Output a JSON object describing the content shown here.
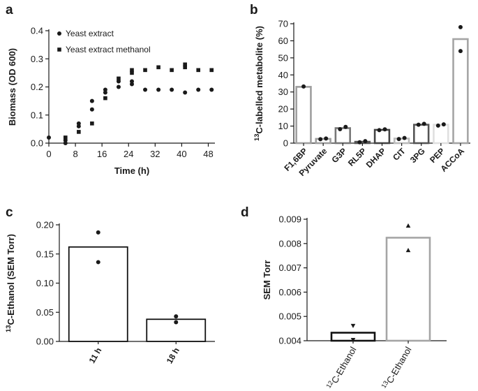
{
  "chart_data": [
    {
      "panel": "a",
      "type": "scatter",
      "xlabel": "Time (h)",
      "ylabel": "Biomass (OD 600)",
      "xlim": [
        0,
        50
      ],
      "ylim": [
        0,
        0.4
      ],
      "xticks": [
        "0",
        "8",
        "16",
        "24",
        "32",
        "40",
        "48"
      ],
      "yticks": [
        "0.0",
        "0.1",
        "0.2",
        "0.3",
        "0.4"
      ],
      "legend_position": "top-left",
      "series": [
        {
          "name": "Yeast extract",
          "marker": "circle",
          "points": [
            [
              0,
              0.02
            ],
            [
              5,
              0.01
            ],
            [
              5,
              0.0
            ],
            [
              9,
              0.06
            ],
            [
              9,
              0.07
            ],
            [
              13,
              0.12
            ],
            [
              13,
              0.15
            ],
            [
              17,
              0.18
            ],
            [
              17,
              0.19
            ],
            [
              21,
              0.2
            ],
            [
              21,
              0.22
            ],
            [
              25,
              0.21
            ],
            [
              25,
              0.22
            ],
            [
              29,
              0.19
            ],
            [
              33,
              0.19
            ],
            [
              37,
              0.19
            ],
            [
              41,
              0.18
            ],
            [
              45,
              0.19
            ],
            [
              49,
              0.19
            ]
          ]
        },
        {
          "name": "Yeast extract methanol",
          "marker": "square",
          "points": [
            [
              5,
              0.02
            ],
            [
              9,
              0.04
            ],
            [
              13,
              0.07
            ],
            [
              17,
              0.16
            ],
            [
              21,
              0.23
            ],
            [
              25,
              0.25
            ],
            [
              25,
              0.26
            ],
            [
              29,
              0.26
            ],
            [
              33,
              0.27
            ],
            [
              37,
              0.26
            ],
            [
              41,
              0.28
            ],
            [
              41,
              0.27
            ],
            [
              45,
              0.26
            ],
            [
              49,
              0.26
            ]
          ]
        }
      ]
    },
    {
      "panel": "b",
      "type": "bar",
      "ylabel_prefix": "13",
      "ylabel": "C-labelled metabolite (%)",
      "ylim": [
        0,
        70
      ],
      "yticks": [
        "0",
        "10",
        "20",
        "30",
        "40",
        "50",
        "60",
        "70"
      ],
      "categories": [
        "F1,6BP",
        "Pyruvate",
        "G3P",
        "RL5P",
        "DHAP",
        "CIT",
        "3PG",
        "PEP",
        "ACCoA"
      ],
      "values": [
        33,
        2.5,
        8.8,
        0.8,
        7.8,
        2.7,
        10.8,
        10.8,
        61
      ],
      "bar_edge_colors": [
        "#9e9e9e",
        "#9e9e9e",
        "#777777",
        "#555555",
        "#444444",
        "#bbbbbb",
        "#555555",
        "#e0e0e0",
        "#a5a5a5"
      ],
      "replicates": [
        [
          33.2
        ],
        [
          2.3,
          2.7
        ],
        [
          8.2,
          9.5
        ],
        [
          0.5,
          1.2
        ],
        [
          7.6,
          8.1
        ],
        [
          2.4,
          3.0
        ],
        [
          10.8,
          11.3
        ],
        [
          10.3,
          11.0
        ],
        [
          54,
          68
        ]
      ]
    },
    {
      "panel": "c",
      "type": "bar",
      "ylabel_prefix": "13",
      "ylabel": "C-Ethanol (SEM Torr)",
      "ylim": [
        0,
        0.2
      ],
      "yticks": [
        "0.00",
        "0.05",
        "0.10",
        "0.15",
        "0.20"
      ],
      "categories": [
        "11 h",
        "18 h"
      ],
      "values": [
        0.162,
        0.038
      ],
      "replicates": [
        [
          0.187,
          0.136
        ],
        [
          0.043,
          0.033
        ]
      ]
    },
    {
      "panel": "d",
      "type": "bar",
      "ylabel": "SEM Torr",
      "ylim": [
        0.004,
        0.009
      ],
      "yticks": [
        "0.004",
        "0.005",
        "0.006",
        "0.007",
        "0.008",
        "0.009"
      ],
      "categories": [
        {
          "prefix": "12",
          "label": "C-Ethanol"
        },
        {
          "prefix": "13",
          "label": "C-Ethanol"
        }
      ],
      "values": [
        0.00433,
        0.00824
      ],
      "bar_edge_colors": [
        "#111111",
        "#a5a5a5"
      ],
      "replicates": [
        {
          "marker": "triangle-down",
          "values": [
            0.00462,
            0.00404
          ]
        },
        {
          "marker": "triangle-up",
          "values": [
            0.00873,
            0.00772
          ]
        }
      ]
    }
  ],
  "panels": {
    "a": "a",
    "b": "b",
    "c": "c",
    "d": "d"
  }
}
